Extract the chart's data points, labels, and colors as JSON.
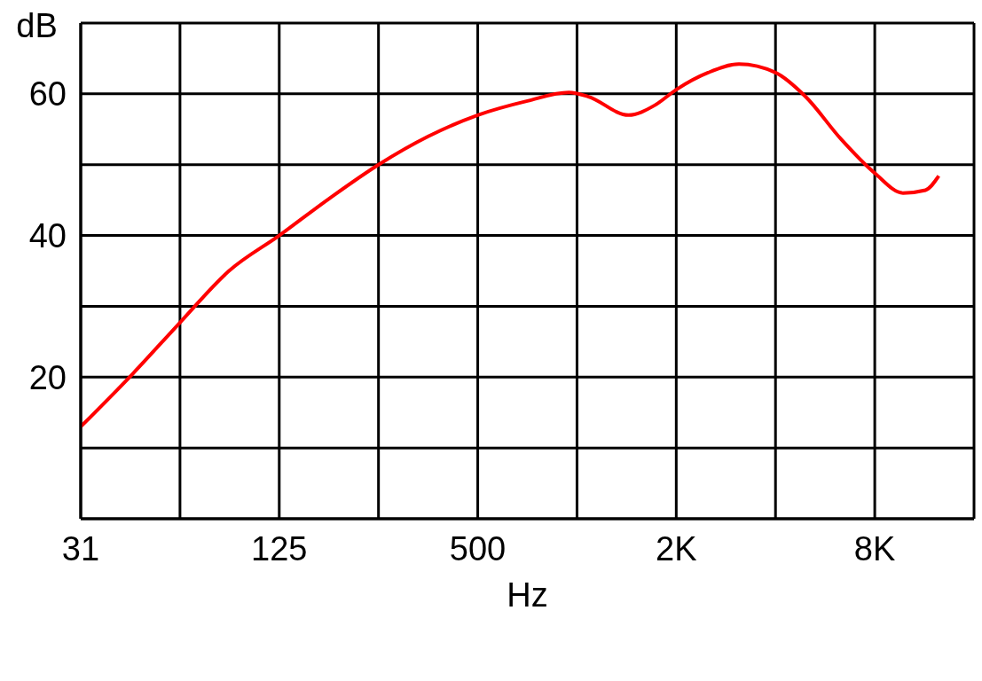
{
  "chart_data": {
    "type": "line",
    "xlabel": "Hz",
    "ylabel": "dB",
    "log": "x",
    "xlim": [
      31.25,
      16000
    ],
    "xticks": [
      {
        "value": 31.25,
        "label": "31"
      },
      {
        "value": 62.5,
        "label": null
      },
      {
        "value": 125,
        "label": "125"
      },
      {
        "value": 250,
        "label": null
      },
      {
        "value": 500,
        "label": "500"
      },
      {
        "value": 1000,
        "label": null
      },
      {
        "value": 2000,
        "label": "2K"
      },
      {
        "value": 4000,
        "label": null
      },
      {
        "value": 8000,
        "label": "8K"
      },
      {
        "value": 16000,
        "label": null
      }
    ],
    "ylim": [
      0,
      70
    ],
    "yticks": [
      {
        "value": 0,
        "label": null
      },
      {
        "value": 10,
        "label": null
      },
      20,
      {
        "value": 30,
        "label": null
      },
      40,
      {
        "value": 50,
        "label": null
      },
      60,
      {
        "value": 70,
        "label": null
      }
    ],
    "grid": true,
    "marker": "none",
    "line_style": "solid",
    "series": [
      {
        "color": "#ff0000",
        "x": [
          31.25,
          45,
          62.5,
          88,
          125,
          177,
          250,
          354,
          500,
          707,
          945,
          1084,
          1432,
          1723,
          2000,
          2498,
          3099,
          4000,
          4935,
          6322,
          8000,
          9754,
          11400,
          12508
        ],
        "values": [
          13,
          20.5,
          27.7,
          35,
          40,
          45.2,
          50,
          54,
          57,
          59,
          60.2,
          59.6,
          57,
          58.4,
          60.6,
          63,
          64.2,
          63,
          59.6,
          53.6,
          48.8,
          46,
          46.4,
          48.4
        ]
      }
    ]
  }
}
